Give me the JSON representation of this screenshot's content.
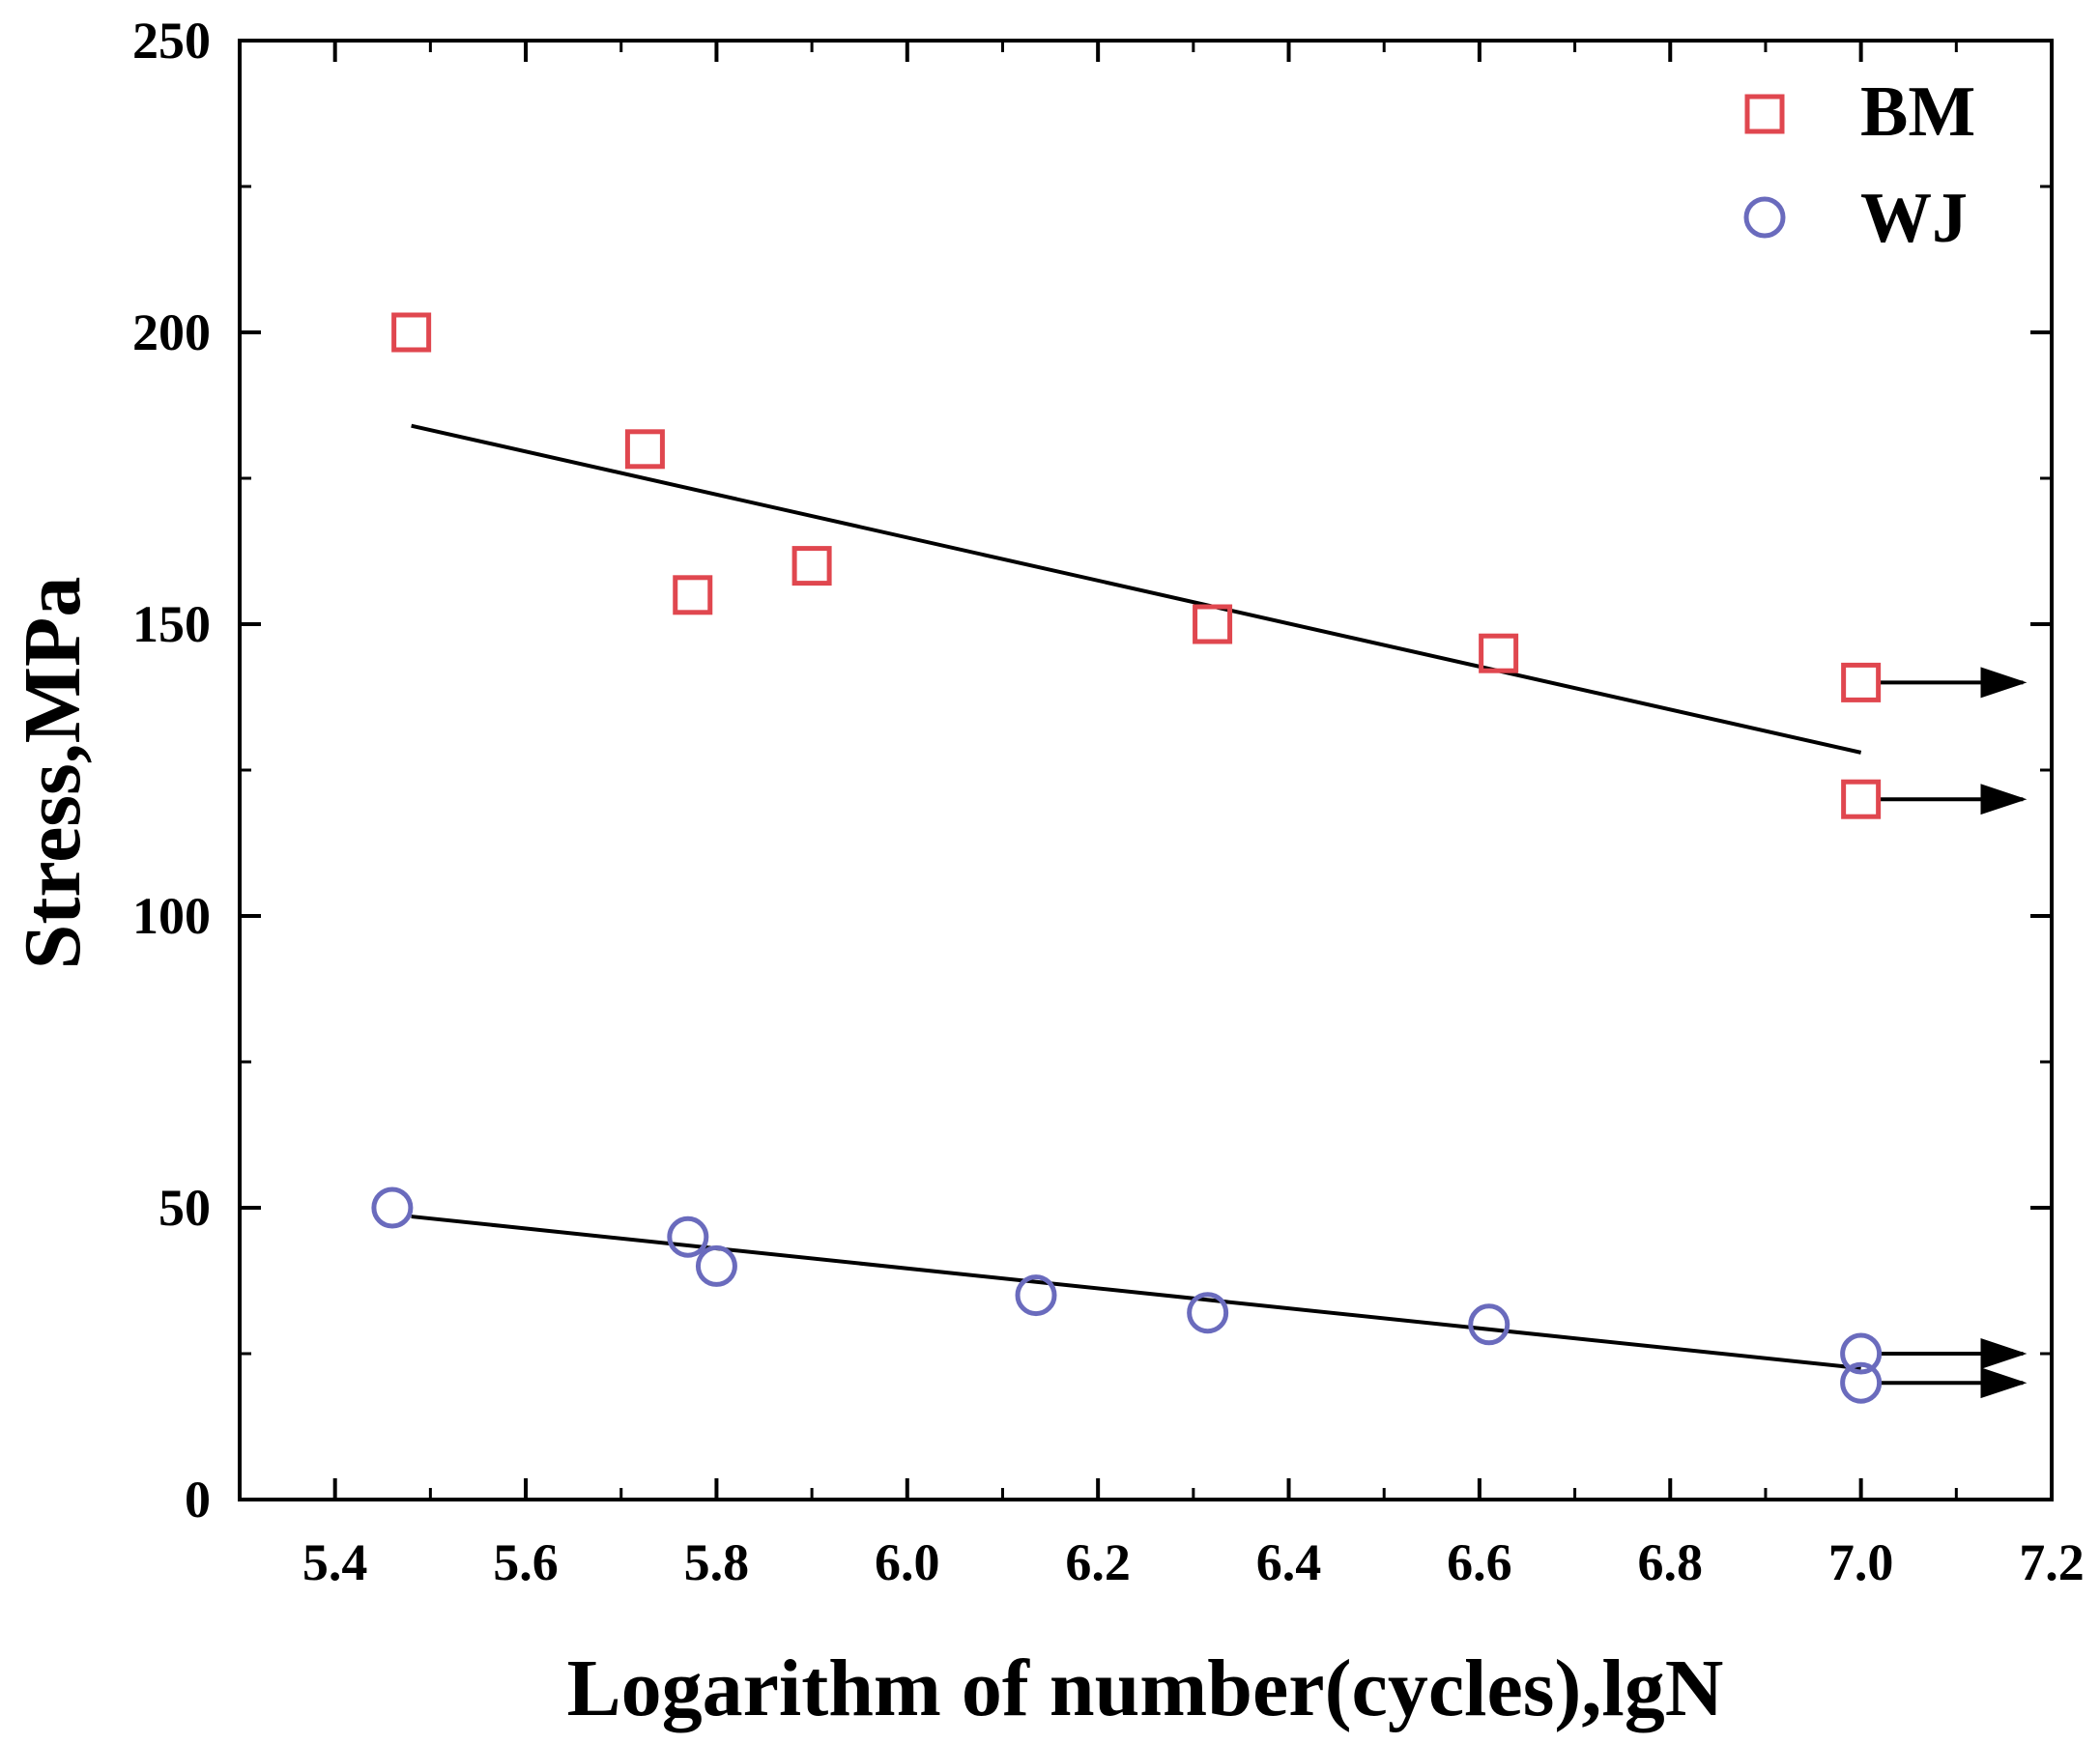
{
  "chart_data": {
    "type": "scatter",
    "title": "",
    "xlabel": "Logarithm of number(cycles),lgN",
    "ylabel": "Stress,MPa",
    "xlim": [
      5.3,
      7.2
    ],
    "ylim": [
      0,
      250
    ],
    "x_ticks": [
      "5.4",
      "5.6",
      "5.8",
      "6.0",
      "6.2",
      "6.4",
      "6.6",
      "6.8",
      "7.0",
      "7.2"
    ],
    "y_ticks": [
      "0",
      "50",
      "100",
      "150",
      "200",
      "250"
    ],
    "grid": false,
    "legend_position": "top-right",
    "series": [
      {
        "name": "BM",
        "marker": "square-open",
        "color": "#e0474f",
        "points": [
          {
            "x": 5.48,
            "y": 200
          },
          {
            "x": 5.725,
            "y": 180
          },
          {
            "x": 5.775,
            "y": 155
          },
          {
            "x": 5.9,
            "y": 160
          },
          {
            "x": 6.32,
            "y": 150
          },
          {
            "x": 6.62,
            "y": 145
          },
          {
            "x": 7.0,
            "y": 140
          },
          {
            "x": 7.0,
            "y": 120
          }
        ],
        "runouts": [
          {
            "x": 7.0,
            "y": 140
          },
          {
            "x": 7.0,
            "y": 120
          }
        ],
        "fit": {
          "x": [
            5.48,
            7.0
          ],
          "y": [
            184,
            128
          ]
        }
      },
      {
        "name": "WJ",
        "marker": "circle-open",
        "color": "#6a6bbd",
        "points": [
          {
            "x": 5.46,
            "y": 50
          },
          {
            "x": 5.77,
            "y": 45
          },
          {
            "x": 5.8,
            "y": 40
          },
          {
            "x": 6.135,
            "y": 35
          },
          {
            "x": 6.315,
            "y": 32
          },
          {
            "x": 6.61,
            "y": 30
          },
          {
            "x": 7.0,
            "y": 25
          },
          {
            "x": 7.0,
            "y": 20
          }
        ],
        "runouts": [
          {
            "x": 7.0,
            "y": 25
          },
          {
            "x": 7.0,
            "y": 20
          }
        ],
        "fit": {
          "x": [
            5.48,
            7.0
          ],
          "y": [
            48.5,
            22.5
          ]
        }
      }
    ],
    "runout_arrow_to_x": 7.17
  }
}
